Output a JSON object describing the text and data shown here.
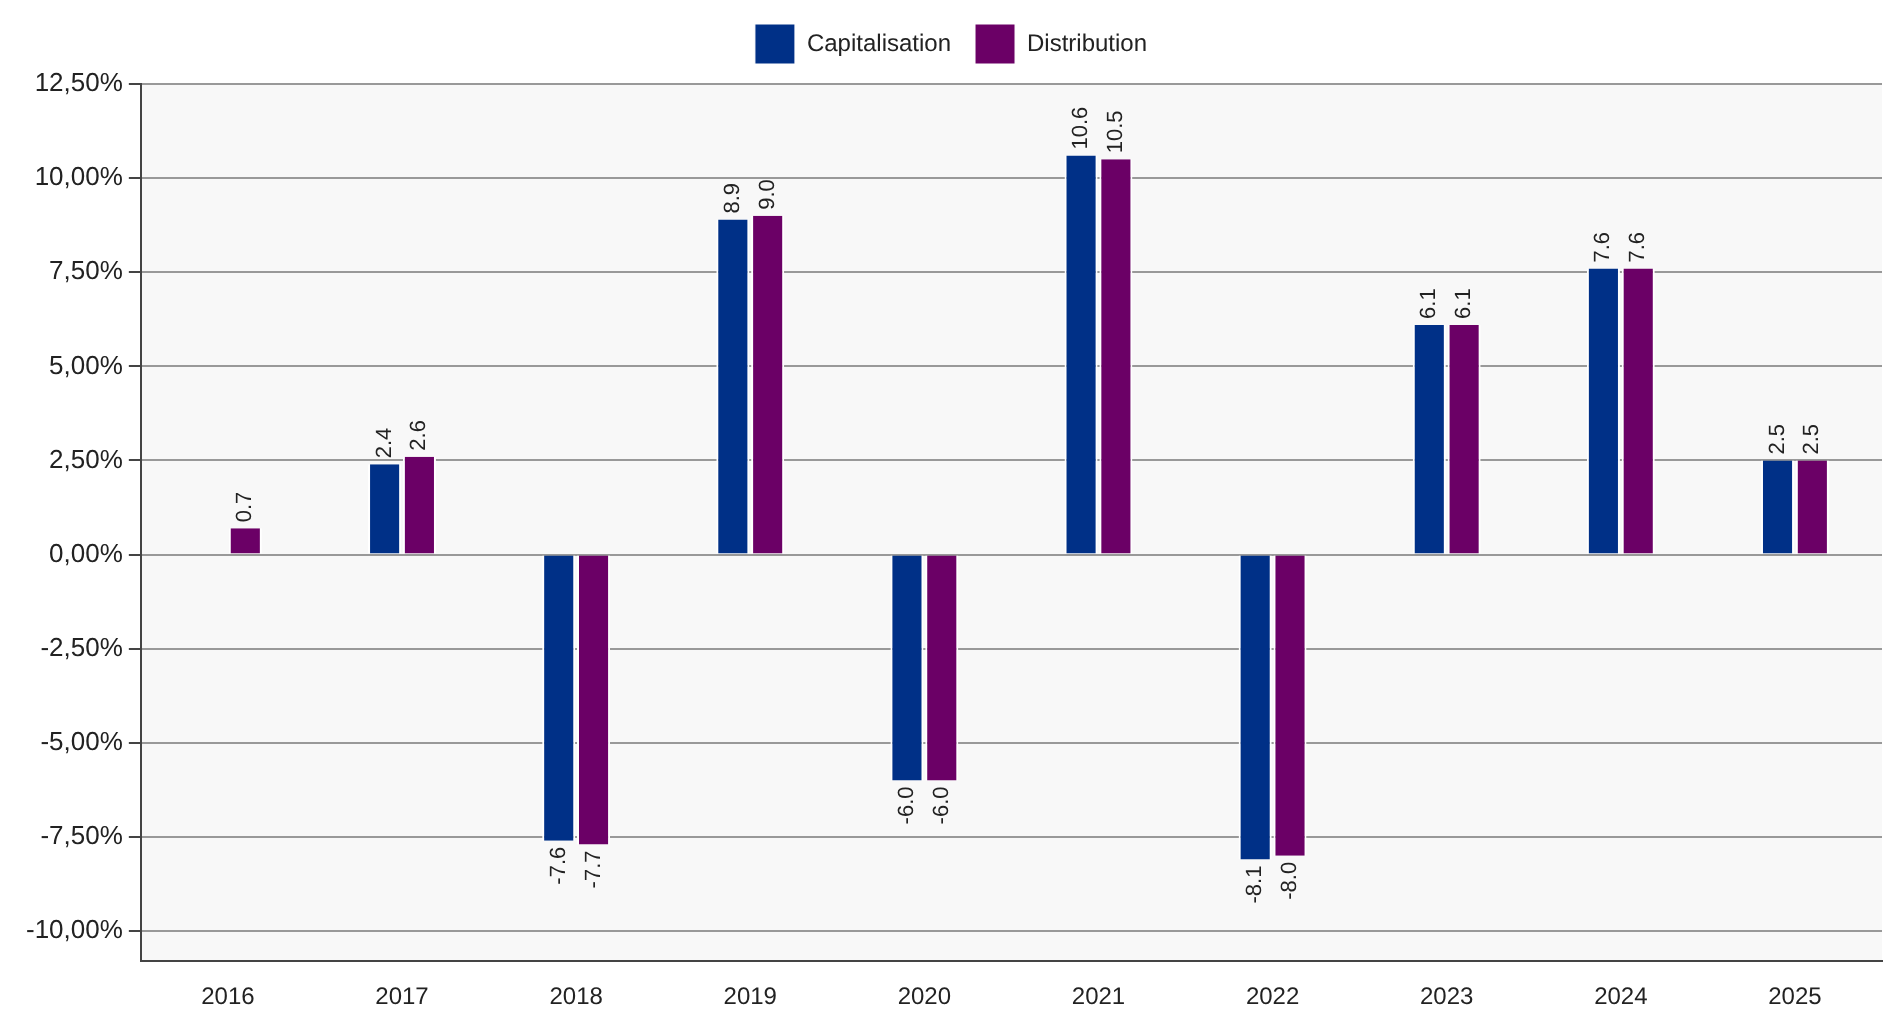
{
  "chart_data": {
    "type": "bar",
    "categories": [
      "2016",
      "2017",
      "2018",
      "2019",
      "2020",
      "2021",
      "2022",
      "2023",
      "2024",
      "2025"
    ],
    "series": [
      {
        "name": "Capitalisation",
        "color": "#003087",
        "values": [
          null,
          2.4,
          -7.6,
          8.9,
          -6.0,
          10.6,
          -8.1,
          6.1,
          7.6,
          2.5
        ],
        "value_labels": [
          null,
          "2.4",
          "-7.6",
          "8.9",
          "-6.0",
          "10.6",
          "-8.1",
          "6.1",
          "7.6",
          "2.5"
        ]
      },
      {
        "name": "Distribution",
        "color": "#6b0066",
        "values": [
          0.7,
          2.6,
          -7.7,
          9.0,
          -6.0,
          10.5,
          -8.0,
          6.1,
          7.6,
          2.5
        ],
        "value_labels": [
          "0.7",
          "2.6",
          "-7.7",
          "9.0",
          "-6.0",
          "10.5",
          "-8.0",
          "6.1",
          "7.6",
          "2.5"
        ]
      }
    ],
    "ylim": [
      -10.8,
      12.5
    ],
    "yticks": [
      {
        "value": -10,
        "label": "-10,00%"
      },
      {
        "value": -7.5,
        "label": "-7,50%"
      },
      {
        "value": -5,
        "label": "-5,00%"
      },
      {
        "value": -2.5,
        "label": "-2,50%"
      },
      {
        "value": 0,
        "label": "0,00%"
      },
      {
        "value": 2.5,
        "label": "2,50%"
      },
      {
        "value": 5,
        "label": "5,00%"
      },
      {
        "value": 7.5,
        "label": "7,50%"
      },
      {
        "value": 10,
        "label": "10,00%"
      },
      {
        "value": 12.5,
        "label": "12,50%"
      }
    ],
    "grid": "y",
    "legend": "top"
  }
}
